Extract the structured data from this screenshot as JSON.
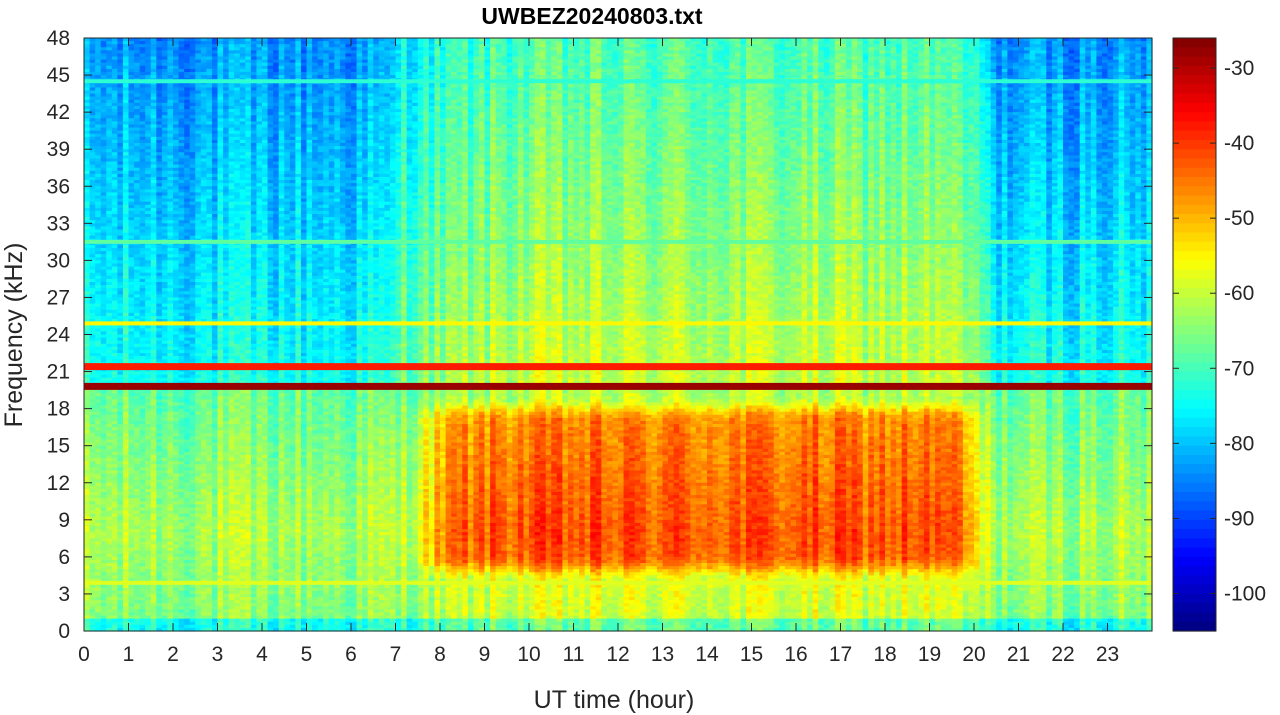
{
  "chart_data": {
    "type": "heatmap",
    "title": "UWBEZ20240803.txt",
    "xlabel": "UT time (hour)",
    "ylabel": "Frequency (kHz)",
    "xlim": [
      0,
      24
    ],
    "ylim": [
      0,
      48
    ],
    "x_ticks": [
      "0",
      "1",
      "2",
      "3",
      "4",
      "5",
      "6",
      "7",
      "8",
      "9",
      "10",
      "11",
      "12",
      "13",
      "14",
      "15",
      "16",
      "17",
      "18",
      "19",
      "20",
      "21",
      "22",
      "23"
    ],
    "y_ticks": [
      "0",
      "3",
      "6",
      "9",
      "12",
      "15",
      "18",
      "21",
      "24",
      "27",
      "30",
      "33",
      "36",
      "39",
      "42",
      "45",
      "48"
    ],
    "colorbar": {
      "range": [
        -105,
        -26
      ],
      "ticks": [
        "-30",
        "-40",
        "-50",
        "-60",
        "-70",
        "-80",
        "-90",
        "-100"
      ],
      "colormap": "jet"
    },
    "features": [
      {
        "kind": "strong-line",
        "freq_khz": 19.8,
        "level_db": -28,
        "hours": [
          0,
          24
        ]
      },
      {
        "kind": "strong-line",
        "freq_khz": 21.4,
        "level_db": -38,
        "hours": [
          0,
          24
        ]
      },
      {
        "kind": "line",
        "freq_khz": 24.9,
        "level_db": -55,
        "hours": [
          0,
          24
        ]
      },
      {
        "kind": "line",
        "freq_khz": 3.9,
        "level_db": -58,
        "hours": [
          0,
          24
        ]
      },
      {
        "kind": "line",
        "freq_khz": 44.5,
        "level_db": -72,
        "hours": [
          0,
          24
        ]
      },
      {
        "kind": "line",
        "freq_khz": 31.5,
        "level_db": -68,
        "hours": [
          0,
          24
        ]
      },
      {
        "kind": "band",
        "freq_khz": [
          5,
          18
        ],
        "peak_db": -45,
        "hours": [
          8,
          20
        ],
        "note": "daytime broadband noise"
      }
    ]
  }
}
